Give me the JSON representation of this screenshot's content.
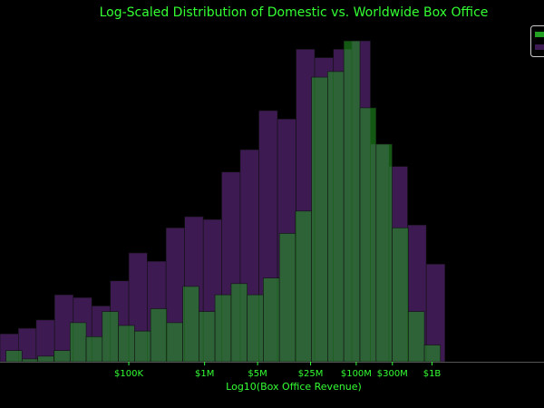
{
  "chart_data": {
    "type": "bar",
    "title": "Log-Scaled Distribution of Domestic vs. Worldwide Box Office",
    "xlabel": "Log10(Box Office Revenue)",
    "ylabel": "",
    "x_scale": "log",
    "xlim": [
      2000,
      30000000000
    ],
    "ylim": [
      0,
      58
    ],
    "grid": false,
    "legend": {
      "placement": "top-right",
      "entries": [
        {
          "color": "#22a022"
        },
        {
          "color": "#3d1a52"
        }
      ]
    },
    "colors": {
      "background": "#000000",
      "text": "#33ff33",
      "domestic": "#22a022",
      "worldwide": "#3d1a52",
      "overlap": "#4a5a52"
    },
    "x_ticks": [
      {
        "value": 100000,
        "label": "$100K"
      },
      {
        "value": 1000000,
        "label": "$1M"
      },
      {
        "value": 5000000,
        "label": "$5M"
      },
      {
        "value": 25000000,
        "label": "$25M"
      },
      {
        "value": 100000000,
        "label": "$100M"
      },
      {
        "value": 300000000,
        "label": "$300M"
      },
      {
        "value": 1000000000,
        "label": "$1B"
      }
    ],
    "series": [
      {
        "color": "#3d1a52",
        "bins": [
          [
            2000,
            3500,
            5
          ],
          [
            3500,
            6000,
            6
          ],
          [
            6000,
            10500,
            7.5
          ],
          [
            10500,
            18500,
            12
          ],
          [
            18500,
            32500,
            11.5
          ],
          [
            32500,
            57000,
            10
          ],
          [
            57000,
            100000,
            14.5
          ],
          [
            100000,
            175000,
            19.5
          ],
          [
            175000,
            310000,
            18
          ],
          [
            310000,
            545000,
            24
          ],
          [
            545000,
            960000,
            26
          ],
          [
            960000,
            1680000,
            25.5
          ],
          [
            1680000,
            2950000,
            34
          ],
          [
            2950000,
            5200000,
            38
          ],
          [
            5200000,
            9150000,
            45
          ],
          [
            9150000,
            16100000,
            43.5
          ],
          [
            16100000,
            28300000,
            56
          ],
          [
            28300000,
            50000000,
            54.5
          ],
          [
            50000000,
            87500000,
            56
          ],
          [
            87500000,
            154000000,
            57.5
          ],
          [
            154000000,
            271000000,
            39
          ],
          [
            271000000,
            476000000,
            35
          ],
          [
            476000000,
            840000000,
            24.5
          ],
          [
            840000000,
            1480000000,
            17.5
          ]
        ]
      },
      {
        "color": "#22a022",
        "bins": [
          [
            2400,
            3900,
            2
          ],
          [
            3900,
            6300,
            0.5
          ],
          [
            6300,
            10300,
            1
          ],
          [
            10300,
            16800,
            2
          ],
          [
            16800,
            27400,
            7
          ],
          [
            27400,
            44700,
            4.5
          ],
          [
            44700,
            72800,
            9
          ],
          [
            72800,
            119000,
            6.5
          ],
          [
            119000,
            194000,
            5.5
          ],
          [
            194000,
            316000,
            9.5
          ],
          [
            316000,
            516000,
            7
          ],
          [
            516000,
            841000,
            13.5
          ],
          [
            841000,
            1370000,
            9
          ],
          [
            1370000,
            2240000,
            12
          ],
          [
            2240000,
            3650000,
            14
          ],
          [
            3650000,
            5950000,
            12
          ],
          [
            5950000,
            9700000,
            15
          ],
          [
            9700000,
            15800000,
            23
          ],
          [
            15800000,
            25800000,
            27
          ],
          [
            25800000,
            42000000,
            51
          ],
          [
            42000000,
            68500000,
            52
          ],
          [
            68500000,
            112000000,
            57.5
          ],
          [
            112000000,
            183000000,
            45.5
          ],
          [
            183000000,
            298000000,
            39
          ],
          [
            298000000,
            486000000,
            24
          ],
          [
            486000000,
            793000000,
            9
          ],
          [
            793000000,
            1290000000,
            3
          ]
        ]
      }
    ]
  }
}
